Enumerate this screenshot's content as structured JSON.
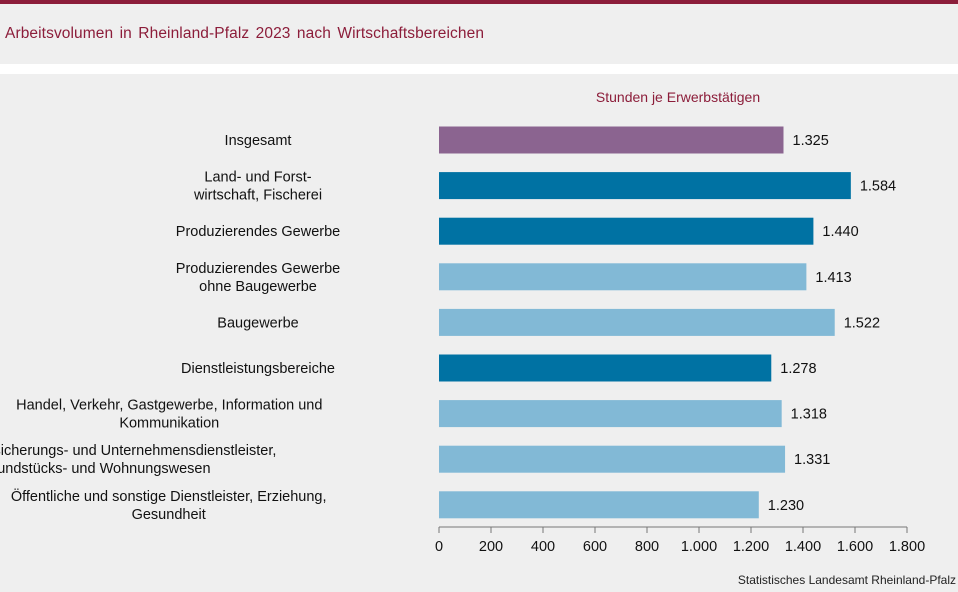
{
  "chart_data": {
    "type": "bar",
    "orientation": "horizontal",
    "title": "Arbeitsvolumen  in Rheinland-Pfalz  2023 nach Wirtschaftsbereichen",
    "xlabel": "Stunden je Erwerbstätigen",
    "xlim": [
      0,
      1800
    ],
    "ticks": [
      0,
      200,
      400,
      600,
      800,
      1000,
      1200,
      1400,
      1600,
      1800
    ],
    "tick_labels": [
      "0",
      "200",
      "400",
      "600",
      "800",
      "1.000",
      "1.200",
      "1.400",
      "1.600",
      "1.800"
    ],
    "grid": false,
    "categories": [
      [
        "Insgesamt"
      ],
      [
        "Land- und Forst-",
        "wirtschaft, Fischerei"
      ],
      [
        "Produzierendes Gewerbe"
      ],
      [
        "Produzierendes Gewerbe",
        "ohne Baugewerbe"
      ],
      [
        "Baugewerbe"
      ],
      [
        "Dienstleistungsbereiche"
      ],
      [
        "Handel, Verkehr, Gastgewerbe, Information und",
        "Kommunikation"
      ],
      [
        "Finanz-, Versicherungs- und Unternehmensdienstleister,",
        "Grundstücks- und Wohnungswesen"
      ],
      [
        "Öffentliche und sonstige Dienstleister, Erziehung,",
        "Gesundheit"
      ]
    ],
    "values": [
      1325,
      1584,
      1440,
      1413,
      1522,
      1278,
      1318,
      1331,
      1230
    ],
    "value_labels": [
      "1.325",
      "1.584",
      "1.440",
      "1.413",
      "1.522",
      "1.278",
      "1.318",
      "1.331",
      "1.230"
    ],
    "bar_colors": [
      "#8b6490",
      "#0072a3",
      "#0072a3",
      "#82b9d6",
      "#82b9d6",
      "#0072a3",
      "#82b9d6",
      "#82b9d6",
      "#82b9d6"
    ]
  },
  "source": "Statistisches Landesamt Rheinland-Pfalz"
}
